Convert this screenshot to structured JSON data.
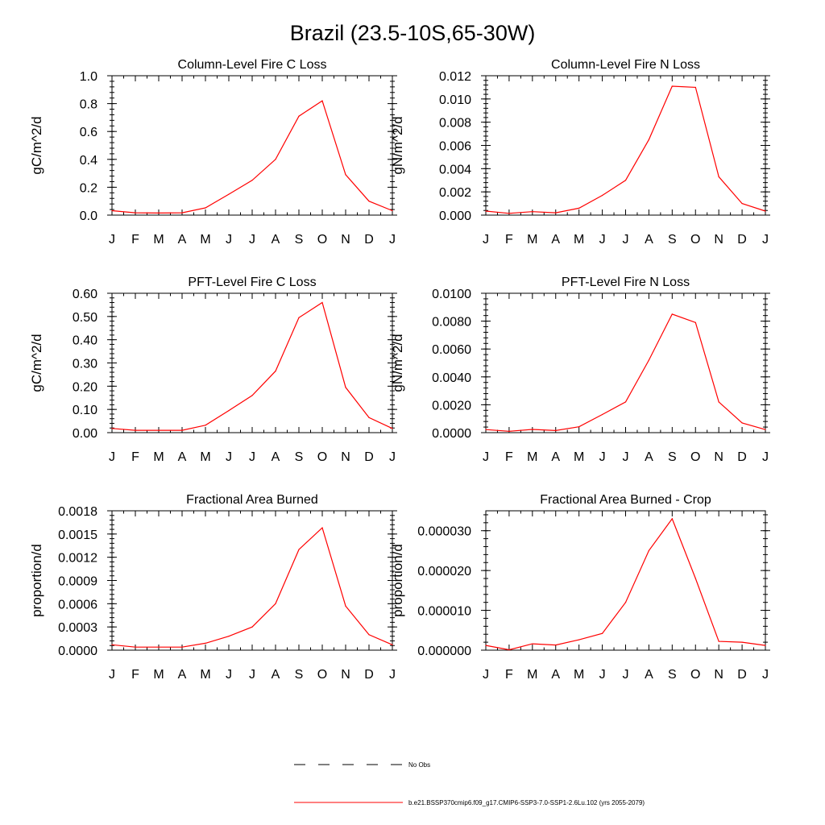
{
  "figure": {
    "title": "Brazil (23.5-10S,65-30W)"
  },
  "months": [
    "J",
    "F",
    "M",
    "A",
    "M",
    "J",
    "J",
    "A",
    "S",
    "O",
    "N",
    "D",
    "J"
  ],
  "legend": {
    "obs_label": "No Obs",
    "model_label": "b.e21.BSSP370cmip6.f09_g17.CMIP6-SSP3-7.0-SSP1-2.6Lu.102 (yrs 2055-2079)",
    "model_color": "#ff0000",
    "obs_color": "#000000"
  },
  "chart_data": [
    {
      "type": "line",
      "title": "Column-Level Fire C Loss",
      "ylabel": "gC/m^2/d",
      "ylim": [
        0,
        1.0
      ],
      "yticks": [
        "0.0",
        "0.2",
        "0.4",
        "0.6",
        "0.8",
        "1.0"
      ],
      "categories": [
        "J",
        "F",
        "M",
        "A",
        "M",
        "J",
        "J",
        "A",
        "S",
        "O",
        "N",
        "D",
        "J"
      ],
      "series": [
        {
          "color": "#ff0000",
          "values": [
            0.032,
            0.017,
            0.015,
            0.017,
            0.052,
            0.15,
            0.25,
            0.4,
            0.71,
            0.82,
            0.29,
            0.1,
            0.032
          ]
        }
      ]
    },
    {
      "type": "line",
      "title": "Column-Level Fire N Loss",
      "ylabel": "gN/m^2/d",
      "ylim": [
        0,
        0.012
      ],
      "yticks": [
        "0.000",
        "0.002",
        "0.004",
        "0.006",
        "0.008",
        "0.010",
        "0.012"
      ],
      "categories": [
        "J",
        "F",
        "M",
        "A",
        "M",
        "J",
        "J",
        "A",
        "S",
        "O",
        "N",
        "D",
        "J"
      ],
      "series": [
        {
          "color": "#ff0000",
          "values": [
            0.00035,
            0.00015,
            0.0003,
            0.0002,
            0.0006,
            0.0017,
            0.003,
            0.0065,
            0.0111,
            0.011,
            0.0033,
            0.001,
            0.00035
          ]
        }
      ]
    },
    {
      "type": "line",
      "title": "PFT-Level Fire C Loss",
      "ylabel": "gC/m^2/d",
      "ylim": [
        0,
        0.6
      ],
      "yticks": [
        "0.00",
        "0.10",
        "0.20",
        "0.30",
        "0.40",
        "0.50",
        "0.60"
      ],
      "categories": [
        "J",
        "F",
        "M",
        "A",
        "M",
        "J",
        "J",
        "A",
        "S",
        "O",
        "N",
        "D",
        "J"
      ],
      "series": [
        {
          "color": "#ff0000",
          "values": [
            0.018,
            0.01,
            0.01,
            0.01,
            0.032,
            0.095,
            0.16,
            0.265,
            0.495,
            0.56,
            0.195,
            0.065,
            0.018
          ]
        }
      ]
    },
    {
      "type": "line",
      "title": "PFT-Level Fire N Loss",
      "ylabel": "gN/m^2/d",
      "ylim": [
        0,
        0.01
      ],
      "yticks": [
        "0.0000",
        "0.0020",
        "0.0040",
        "0.0060",
        "0.0080",
        "0.0100"
      ],
      "categories": [
        "J",
        "F",
        "M",
        "A",
        "M",
        "J",
        "J",
        "A",
        "S",
        "O",
        "N",
        "D",
        "J"
      ],
      "series": [
        {
          "color": "#ff0000",
          "values": [
            0.00022,
            0.0001,
            0.00023,
            0.00015,
            0.00042,
            0.0013,
            0.0022,
            0.0052,
            0.0085,
            0.0079,
            0.0022,
            0.0007,
            0.00022
          ]
        }
      ]
    },
    {
      "type": "line",
      "title": "Fractional Area Burned",
      "ylabel": "proportion/d",
      "ylim": [
        0,
        0.0018
      ],
      "yticks": [
        "0.0000",
        "0.0003",
        "0.0006",
        "0.0009",
        "0.0012",
        "0.0015",
        "0.0018"
      ],
      "categories": [
        "J",
        "F",
        "M",
        "A",
        "M",
        "J",
        "J",
        "A",
        "S",
        "O",
        "N",
        "D",
        "J"
      ],
      "series": [
        {
          "color": "#ff0000",
          "values": [
            7e-05,
            4e-05,
            4e-05,
            4e-05,
            9e-05,
            0.00018,
            0.0003,
            0.0006,
            0.0013,
            0.00158,
            0.00057,
            0.0002,
            7e-05
          ]
        }
      ]
    },
    {
      "type": "line",
      "title": "Fractional Area Burned - Crop",
      "ylabel": "proportion/d",
      "ylim": [
        0,
        3.5e-05
      ],
      "yticks": [
        "0.000000",
        "0.000010",
        "0.000020",
        "0.000030"
      ],
      "ytick_values": [
        0,
        1e-05,
        2e-05,
        3e-05
      ],
      "categories": [
        "J",
        "F",
        "M",
        "A",
        "M",
        "J",
        "J",
        "A",
        "S",
        "O",
        "N",
        "D",
        "J"
      ],
      "series": [
        {
          "color": "#ff0000",
          "values": [
            1.2e-06,
            1e-07,
            1.6e-06,
            1.3e-06,
            2.6e-06,
            4.2e-06,
            1.2e-05,
            2.5e-05,
            3.3e-05,
            1.8e-05,
            2.2e-06,
            2e-06,
            1.2e-06
          ]
        }
      ]
    }
  ]
}
